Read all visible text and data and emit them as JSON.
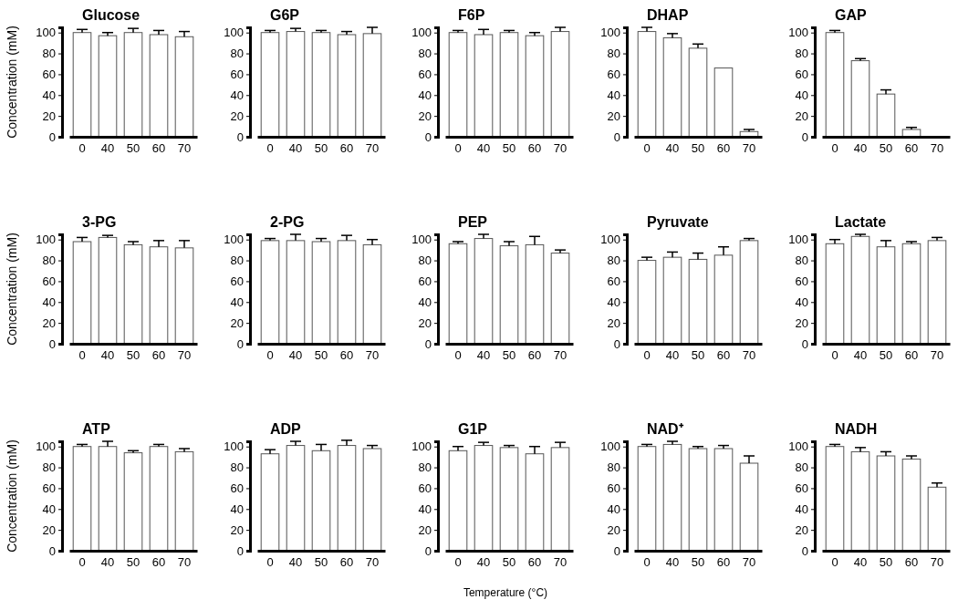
{
  "chart_data": [
    {
      "type": "bar",
      "title": "Glucose",
      "ylabel": "Concentration (mM)",
      "categories": [
        "0",
        "40",
        "50",
        "60",
        "70"
      ],
      "values": [
        100,
        97,
        100,
        98,
        96
      ],
      "errors": [
        3,
        3,
        4,
        4,
        5
      ],
      "color": "#ffffff",
      "ylim": [
        0,
        105
      ],
      "yticks": [
        0,
        20,
        40,
        60,
        80,
        100
      ]
    },
    {
      "type": "bar",
      "title": "G6P",
      "categories": [
        "0",
        "40",
        "50",
        "60",
        "70"
      ],
      "values": [
        100,
        101,
        100,
        98,
        99
      ],
      "errors": [
        2,
        3,
        2,
        3,
        6
      ],
      "color": "#ffffff",
      "ylim": [
        0,
        105
      ],
      "yticks": [
        0,
        20,
        40,
        60,
        80,
        100
      ]
    },
    {
      "type": "bar",
      "title": "F6P",
      "categories": [
        "0",
        "40",
        "50",
        "60",
        "70"
      ],
      "values": [
        100,
        98,
        100,
        97,
        101
      ],
      "errors": [
        2,
        5,
        2,
        3,
        4
      ],
      "color": "#ffffff",
      "ylim": [
        0,
        105
      ],
      "yticks": [
        0,
        20,
        40,
        60,
        80,
        100
      ]
    },
    {
      "type": "bar",
      "title": "DHAP",
      "categories": [
        "0",
        "40",
        "50",
        "60",
        "70"
      ],
      "values": [
        101,
        95,
        85,
        66,
        5
      ],
      "errors": [
        4,
        4,
        4,
        null,
        2
      ],
      "color": "#ffffff",
      "ylim": [
        0,
        105
      ],
      "yticks": [
        0,
        20,
        40,
        60,
        80,
        100
      ]
    },
    {
      "type": "bar",
      "title": "GAP",
      "categories": [
        "0",
        "40",
        "50",
        "60",
        "70"
      ],
      "values": [
        100,
        73,
        41,
        7,
        0
      ],
      "errors": [
        2,
        2,
        4,
        2,
        null
      ],
      "color": "#ffffff",
      "ylim": [
        0,
        105
      ],
      "yticks": [
        0,
        20,
        40,
        60,
        80,
        100
      ]
    },
    {
      "type": "bar",
      "title": "3-PG",
      "ylabel": "Concentration (mM)",
      "categories": [
        "0",
        "40",
        "50",
        "60",
        "70"
      ],
      "values": [
        98,
        102,
        95,
        93,
        92
      ],
      "errors": [
        4,
        2,
        3,
        6,
        7
      ],
      "color": "#ffffff",
      "ylim": [
        0,
        105
      ],
      "yticks": [
        0,
        20,
        40,
        60,
        80,
        100
      ]
    },
    {
      "type": "bar",
      "title": "2-PG",
      "categories": [
        "0",
        "40",
        "50",
        "60",
        "70"
      ],
      "values": [
        99,
        99,
        98,
        99,
        95
      ],
      "errors": [
        2,
        6,
        3,
        5,
        5
      ],
      "color": "#ffffff",
      "ylim": [
        0,
        105
      ],
      "yticks": [
        0,
        20,
        40,
        60,
        80,
        100
      ]
    },
    {
      "type": "bar",
      "title": "PEP",
      "categories": [
        "0",
        "40",
        "50",
        "60",
        "70"
      ],
      "values": [
        96,
        101,
        94,
        95,
        87
      ],
      "errors": [
        2,
        4,
        4,
        8,
        3
      ],
      "color": "#ffffff",
      "ylim": [
        0,
        105
      ],
      "yticks": [
        0,
        20,
        40,
        60,
        80,
        100
      ]
    },
    {
      "type": "bar",
      "title": "Pyruvate",
      "categories": [
        "0",
        "40",
        "50",
        "60",
        "70"
      ],
      "values": [
        80,
        83,
        81,
        85,
        99
      ],
      "errors": [
        3,
        5,
        6,
        8,
        2
      ],
      "color": "#ffffff",
      "ylim": [
        0,
        105
      ],
      "yticks": [
        0,
        20,
        40,
        60,
        80,
        100
      ]
    },
    {
      "type": "bar",
      "title": "Lactate",
      "categories": [
        "0",
        "40",
        "50",
        "60",
        "70"
      ],
      "values": [
        96,
        103,
        93,
        96,
        99
      ],
      "errors": [
        4,
        2,
        6,
        2,
        3
      ],
      "color": "#ffffff",
      "ylim": [
        0,
        105
      ],
      "yticks": [
        0,
        20,
        40,
        60,
        80,
        100
      ]
    },
    {
      "type": "bar",
      "title": "ATP",
      "ylabel": "Concentration (mM)",
      "categories": [
        "0",
        "40",
        "50",
        "60",
        "70"
      ],
      "values": [
        100,
        100,
        94,
        100,
        95
      ],
      "errors": [
        2,
        5,
        2,
        2,
        3
      ],
      "color": "#ffffff",
      "ylim": [
        0,
        105
      ],
      "yticks": [
        0,
        20,
        40,
        60,
        80,
        100
      ]
    },
    {
      "type": "bar",
      "title": "ADP",
      "categories": [
        "0",
        "40",
        "50",
        "60",
        "70"
      ],
      "values": [
        93,
        101,
        96,
        101,
        98
      ],
      "errors": [
        4,
        4,
        6,
        5,
        3
      ],
      "color": "#ffffff",
      "ylim": [
        0,
        105
      ],
      "yticks": [
        0,
        20,
        40,
        60,
        80,
        100
      ]
    },
    {
      "type": "bar",
      "title": "G1P",
      "xlabel": "Temperature (°C)",
      "categories": [
        "0",
        "40",
        "50",
        "60",
        "70"
      ],
      "values": [
        96,
        101,
        99,
        93,
        99
      ],
      "errors": [
        4,
        3,
        2,
        7,
        5
      ],
      "color": "#ffffff",
      "ylim": [
        0,
        105
      ],
      "yticks": [
        0,
        20,
        40,
        60,
        80,
        100
      ]
    },
    {
      "type": "bar",
      "title": "NAD⁺",
      "categories": [
        "0",
        "40",
        "50",
        "60",
        "70"
      ],
      "values": [
        100,
        102,
        98,
        98,
        84
      ],
      "errors": [
        2,
        3,
        2,
        3,
        7
      ],
      "color": "#ffffff",
      "ylim": [
        0,
        105
      ],
      "yticks": [
        0,
        20,
        40,
        60,
        80,
        100
      ]
    },
    {
      "type": "bar",
      "title": "NADH",
      "categories": [
        "0",
        "40",
        "50",
        "60",
        "70"
      ],
      "values": [
        100,
        95,
        91,
        88,
        61
      ],
      "errors": [
        2,
        4,
        4,
        3,
        4
      ],
      "color": "#ffffff",
      "ylim": [
        0,
        105
      ],
      "yticks": [
        0,
        20,
        40,
        60,
        80,
        100
      ]
    }
  ]
}
